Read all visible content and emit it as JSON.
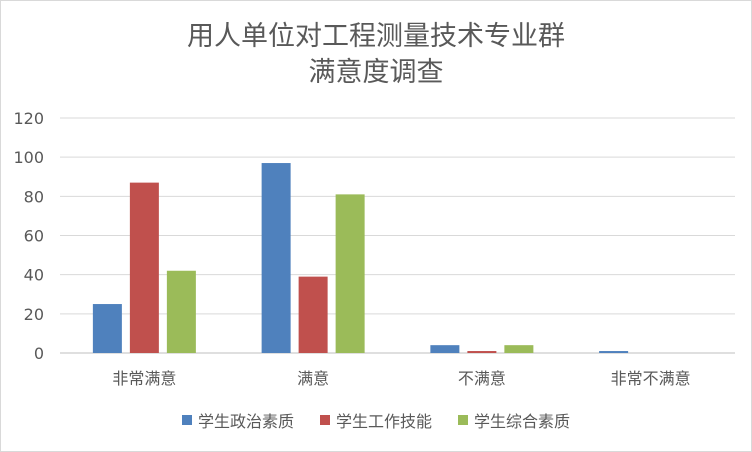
{
  "chart_data": {
    "type": "bar",
    "title_lines": [
      "用人单位对工程测量技术专业群",
      "满意度调查"
    ],
    "categories": [
      "非常满意",
      "满意",
      "不满意",
      "非常不满意"
    ],
    "series": [
      {
        "name": "学生政治素质",
        "color": "#4f81bd",
        "values": [
          25,
          97,
          4,
          1
        ]
      },
      {
        "name": "学生工作技能",
        "color": "#c0504d",
        "values": [
          87,
          39,
          1,
          0
        ]
      },
      {
        "name": "学生综合素质",
        "color": "#9bbb59",
        "values": [
          42,
          81,
          4,
          0
        ]
      }
    ],
    "yticks": [
      "0",
      "20",
      "40",
      "60",
      "80",
      "100",
      "120"
    ],
    "ylim": [
      0,
      120
    ],
    "grid": true,
    "legend_position": "bottom"
  }
}
